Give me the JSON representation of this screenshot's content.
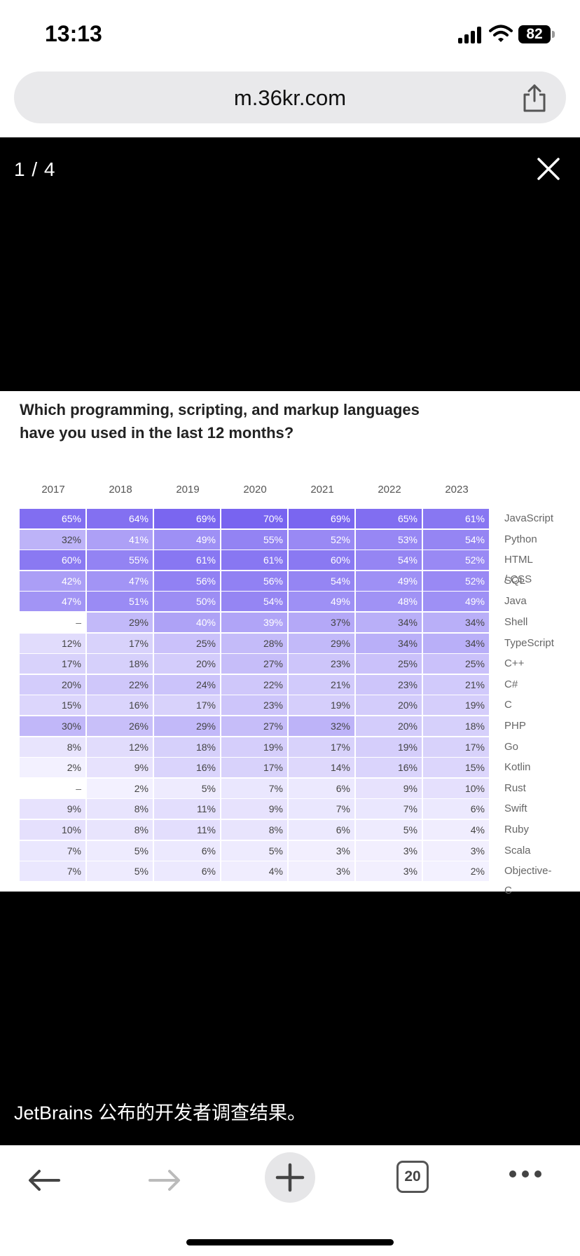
{
  "status": {
    "time": "13:13",
    "battery": "82"
  },
  "browser": {
    "url": "m.36kr.com",
    "tab_count": "20"
  },
  "viewer": {
    "counter": "1 / 4",
    "caption": "JetBrains 公布的开发者调查结果。"
  },
  "survey": {
    "question": "Which programming, scripting, and markup languages have you used in the last 12 months?",
    "years": [
      "2017",
      "2018",
      "2019",
      "2020",
      "2021",
      "2022",
      "2023"
    ]
  },
  "chart_data": {
    "type": "heatmap",
    "title": "Which programming, scripting, and markup languages have you used in the last 12 months?",
    "columns": [
      "2017",
      "2018",
      "2019",
      "2020",
      "2021",
      "2022",
      "2023"
    ],
    "rows": [
      {
        "label": "JavaScript",
        "values": [
          "65%",
          "64%",
          "69%",
          "70%",
          "69%",
          "65%",
          "61%"
        ]
      },
      {
        "label": "Python",
        "values": [
          "32%",
          "41%",
          "49%",
          "55%",
          "52%",
          "53%",
          "54%"
        ]
      },
      {
        "label": "HTML / CSS",
        "values": [
          "60%",
          "55%",
          "61%",
          "61%",
          "60%",
          "54%",
          "52%"
        ]
      },
      {
        "label": "SQL",
        "values": [
          "42%",
          "47%",
          "56%",
          "56%",
          "54%",
          "49%",
          "52%"
        ]
      },
      {
        "label": "Java",
        "values": [
          "47%",
          "51%",
          "50%",
          "54%",
          "49%",
          "48%",
          "49%"
        ]
      },
      {
        "label": "Shell",
        "values": [
          "–",
          "29%",
          "40%",
          "39%",
          "37%",
          "34%",
          "34%"
        ]
      },
      {
        "label": "TypeScript",
        "values": [
          "12%",
          "17%",
          "25%",
          "28%",
          "29%",
          "34%",
          "34%"
        ]
      },
      {
        "label": "C++",
        "values": [
          "17%",
          "18%",
          "20%",
          "27%",
          "23%",
          "25%",
          "25%"
        ]
      },
      {
        "label": "C#",
        "values": [
          "20%",
          "22%",
          "24%",
          "22%",
          "21%",
          "23%",
          "21%"
        ]
      },
      {
        "label": "C",
        "values": [
          "15%",
          "16%",
          "17%",
          "23%",
          "19%",
          "20%",
          "19%"
        ]
      },
      {
        "label": "PHP",
        "values": [
          "30%",
          "26%",
          "29%",
          "27%",
          "32%",
          "20%",
          "18%"
        ]
      },
      {
        "label": "Go",
        "values": [
          "8%",
          "12%",
          "18%",
          "19%",
          "17%",
          "19%",
          "17%"
        ]
      },
      {
        "label": "Kotlin",
        "values": [
          "2%",
          "9%",
          "16%",
          "17%",
          "14%",
          "16%",
          "15%"
        ]
      },
      {
        "label": "Rust",
        "values": [
          "–",
          "2%",
          "5%",
          "7%",
          "6%",
          "9%",
          "10%"
        ]
      },
      {
        "label": "Swift",
        "values": [
          "9%",
          "8%",
          "11%",
          "9%",
          "7%",
          "7%",
          "6%"
        ]
      },
      {
        "label": "Ruby",
        "values": [
          "10%",
          "8%",
          "11%",
          "8%",
          "6%",
          "5%",
          "4%"
        ]
      },
      {
        "label": "Scala",
        "values": [
          "7%",
          "5%",
          "6%",
          "5%",
          "3%",
          "3%",
          "3%"
        ]
      },
      {
        "label": "Objective-C",
        "values": [
          "7%",
          "5%",
          "6%",
          "4%",
          "3%",
          "3%",
          "2%"
        ]
      }
    ]
  }
}
